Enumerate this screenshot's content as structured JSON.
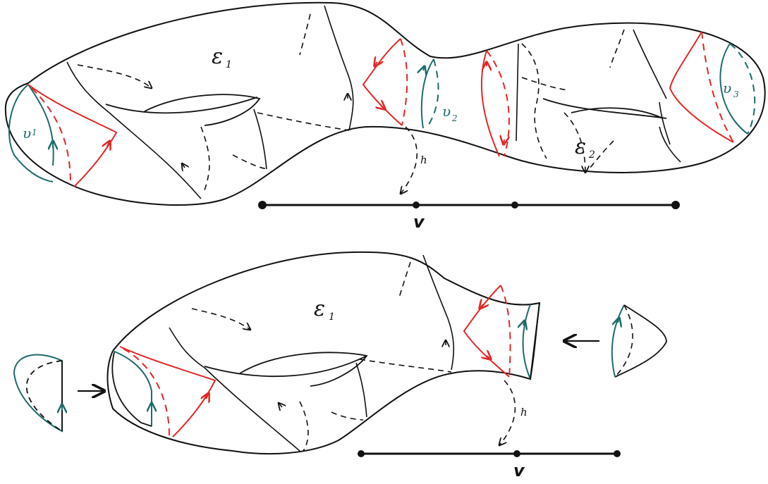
{
  "colors": {
    "ink": "#111111",
    "red": "#e32626",
    "teal": "#1f6b6b"
  },
  "top": {
    "epsilon_1": "ε",
    "epsilon_1_sub": "1",
    "epsilon_2": "ε",
    "epsilon_2_sub": "2",
    "u1": "υ",
    "u1_sub": "1",
    "u2": "υ",
    "u2_sub": "2",
    "u3": "υ",
    "u3_sub": "3",
    "h": "h",
    "v": "v"
  },
  "bottom": {
    "epsilon_1": "ε",
    "epsilon_1_sub": "1",
    "h": "h",
    "v": "v"
  }
}
